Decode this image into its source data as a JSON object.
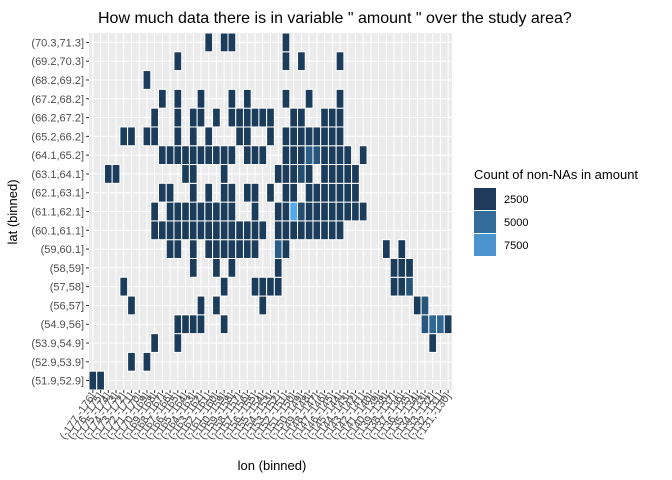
{
  "chart_data": {
    "type": "heatmap",
    "title": "How much data there is in variable \" amount  \" over the study area?",
    "xlabel": "lon (binned)",
    "ylabel": "lat (binned)",
    "x_categories": [
      "(-177,-176]",
      "(-176,-175]",
      "(-175,-174]",
      "(-174,-173]",
      "(-173,-172]",
      "(-172,-171]",
      "(-171,-170]",
      "(-170,-169]",
      "(-169,-168]",
      "(-168,-167]",
      "(-167,-166]",
      "(-166,-165]",
      "(-165,-164]",
      "(-164,-163]",
      "(-163,-162]",
      "(-162,-161]",
      "(-161,-160]",
      "(-160,-159]",
      "(-159,-158]",
      "(-158,-157]",
      "(-157,-156]",
      "(-156,-155]",
      "(-155,-154]",
      "(-154,-153]",
      "(-153,-152]",
      "(-152,-151]",
      "(-151,-150]",
      "(-150,-149]",
      "(-149,-148]",
      "(-148,-147]",
      "(-147,-146]",
      "(-146,-145]",
      "(-145,-144]",
      "(-144,-143]",
      "(-143,-142]",
      "(-142,-141]",
      "(-141,-140]",
      "(-140,-139]",
      "(-139,-138]",
      "(-138,-137]",
      "(-137,-136]",
      "(-136,-135]",
      "(-135,-134]",
      "(-134,-133]",
      "(-133,-132]",
      "(-132,-131]",
      "(-131,-130]"
    ],
    "y_categories": [
      "(51.9,52.9]",
      "(52.9,53.9]",
      "(53.9,54.9]",
      "(54.9,56]",
      "(56,57]",
      "(57,58]",
      "(58,59]",
      "(59,60.1]",
      "(60.1,61.1]",
      "(61.1,62.1]",
      "(62.1,63.1]",
      "(63.1,64.1]",
      "(64.1,65.2]",
      "(65.2,66.2]",
      "(66.2,67.2]",
      "(67.2,68.2]",
      "(68.2,69.2]",
      "(69.2,70.3]",
      "(70.3,71.3]"
    ],
    "cells": [
      [
        0,
        0,
        1000
      ],
      [
        1,
        0,
        1000
      ],
      [
        5,
        1,
        1000
      ],
      [
        7,
        1,
        1000
      ],
      [
        8,
        2,
        1000
      ],
      [
        11,
        2,
        1000
      ],
      [
        44,
        2,
        1000
      ],
      [
        11,
        3,
        1000
      ],
      [
        12,
        3,
        1000
      ],
      [
        13,
        3,
        1000
      ],
      [
        14,
        3,
        1000
      ],
      [
        17,
        3,
        1000
      ],
      [
        43,
        3,
        2500
      ],
      [
        44,
        3,
        3500
      ],
      [
        45,
        3,
        3500
      ],
      [
        46,
        3,
        1000
      ],
      [
        5,
        4,
        1000
      ],
      [
        14,
        4,
        1000
      ],
      [
        16,
        4,
        1000
      ],
      [
        22,
        4,
        1000
      ],
      [
        42,
        4,
        1000
      ],
      [
        43,
        4,
        2500
      ],
      [
        4,
        5,
        1000
      ],
      [
        17,
        5,
        1000
      ],
      [
        21,
        5,
        1000
      ],
      [
        22,
        5,
        1000
      ],
      [
        23,
        5,
        1000
      ],
      [
        24,
        5,
        1000
      ],
      [
        39,
        5,
        1000
      ],
      [
        40,
        5,
        1000
      ],
      [
        41,
        5,
        2500
      ],
      [
        13,
        6,
        1000
      ],
      [
        16,
        6,
        1000
      ],
      [
        18,
        6,
        1000
      ],
      [
        24,
        6,
        1000
      ],
      [
        39,
        6,
        1000
      ],
      [
        40,
        6,
        1000
      ],
      [
        41,
        6,
        1000
      ],
      [
        10,
        7,
        1000
      ],
      [
        11,
        7,
        1000
      ],
      [
        13,
        7,
        1000
      ],
      [
        15,
        7,
        1000
      ],
      [
        16,
        7,
        1000
      ],
      [
        17,
        7,
        1000
      ],
      [
        18,
        7,
        1000
      ],
      [
        19,
        7,
        1000
      ],
      [
        20,
        7,
        1000
      ],
      [
        21,
        7,
        1000
      ],
      [
        24,
        7,
        3000
      ],
      [
        25,
        7,
        1000
      ],
      [
        38,
        7,
        1000
      ],
      [
        40,
        7,
        1000
      ],
      [
        8,
        8,
        1000
      ],
      [
        9,
        8,
        1000
      ],
      [
        10,
        8,
        1000
      ],
      [
        11,
        8,
        1000
      ],
      [
        12,
        8,
        1000
      ],
      [
        13,
        8,
        1000
      ],
      [
        14,
        8,
        1000
      ],
      [
        15,
        8,
        1000
      ],
      [
        16,
        8,
        1000
      ],
      [
        17,
        8,
        1000
      ],
      [
        18,
        8,
        1000
      ],
      [
        19,
        8,
        1000
      ],
      [
        20,
        8,
        1000
      ],
      [
        21,
        8,
        1000
      ],
      [
        22,
        8,
        1000
      ],
      [
        24,
        8,
        1000
      ],
      [
        25,
        8,
        1000
      ],
      [
        26,
        8,
        1000
      ],
      [
        27,
        8,
        1000
      ],
      [
        28,
        8,
        1000
      ],
      [
        29,
        8,
        1000
      ],
      [
        30,
        8,
        1000
      ],
      [
        31,
        8,
        1000
      ],
      [
        32,
        8,
        1000
      ],
      [
        8,
        9,
        1000
      ],
      [
        10,
        9,
        1000
      ],
      [
        11,
        9,
        1000
      ],
      [
        12,
        9,
        1000
      ],
      [
        13,
        9,
        1000
      ],
      [
        14,
        9,
        1000
      ],
      [
        15,
        9,
        1000
      ],
      [
        16,
        9,
        1000
      ],
      [
        17,
        9,
        1000
      ],
      [
        18,
        9,
        1000
      ],
      [
        21,
        9,
        1000
      ],
      [
        24,
        9,
        1000
      ],
      [
        25,
        9,
        1000
      ],
      [
        26,
        9,
        7500
      ],
      [
        27,
        9,
        2000
      ],
      [
        28,
        9,
        1000
      ],
      [
        29,
        9,
        1000
      ],
      [
        30,
        9,
        1000
      ],
      [
        31,
        9,
        1000
      ],
      [
        32,
        9,
        1000
      ],
      [
        33,
        9,
        1000
      ],
      [
        34,
        9,
        1000
      ],
      [
        35,
        9,
        1000
      ],
      [
        9,
        10,
        1000
      ],
      [
        10,
        10,
        1000
      ],
      [
        13,
        10,
        1000
      ],
      [
        15,
        10,
        1000
      ],
      [
        17,
        10,
        1000
      ],
      [
        18,
        10,
        1000
      ],
      [
        20,
        10,
        1000
      ],
      [
        21,
        10,
        1000
      ],
      [
        23,
        10,
        1000
      ],
      [
        25,
        10,
        1000
      ],
      [
        26,
        10,
        1000
      ],
      [
        28,
        10,
        1000
      ],
      [
        29,
        10,
        1000
      ],
      [
        30,
        10,
        1000
      ],
      [
        31,
        10,
        1000
      ],
      [
        32,
        10,
        1000
      ],
      [
        33,
        10,
        1000
      ],
      [
        34,
        10,
        1000
      ],
      [
        2,
        11,
        1000
      ],
      [
        3,
        11,
        1000
      ],
      [
        12,
        11,
        1000
      ],
      [
        13,
        11,
        1000
      ],
      [
        17,
        11,
        1000
      ],
      [
        24,
        11,
        1000
      ],
      [
        25,
        11,
        1000
      ],
      [
        26,
        11,
        1000
      ],
      [
        27,
        11,
        2000
      ],
      [
        28,
        11,
        1000
      ],
      [
        30,
        11,
        1000
      ],
      [
        31,
        11,
        1000
      ],
      [
        32,
        11,
        1000
      ],
      [
        33,
        11,
        1000
      ],
      [
        34,
        11,
        1000
      ],
      [
        9,
        12,
        1000
      ],
      [
        10,
        12,
        1000
      ],
      [
        11,
        12,
        1000
      ],
      [
        12,
        12,
        1000
      ],
      [
        13,
        12,
        1000
      ],
      [
        14,
        12,
        1000
      ],
      [
        15,
        12,
        1000
      ],
      [
        16,
        12,
        1000
      ],
      [
        17,
        12,
        1000
      ],
      [
        18,
        12,
        1000
      ],
      [
        20,
        12,
        1000
      ],
      [
        21,
        12,
        1000
      ],
      [
        22,
        12,
        1000
      ],
      [
        25,
        12,
        1000
      ],
      [
        26,
        12,
        1000
      ],
      [
        27,
        12,
        1000
      ],
      [
        28,
        12,
        3000
      ],
      [
        29,
        12,
        2500
      ],
      [
        30,
        12,
        1000
      ],
      [
        31,
        12,
        1000
      ],
      [
        32,
        12,
        1000
      ],
      [
        33,
        12,
        1000
      ],
      [
        35,
        12,
        1000
      ],
      [
        4,
        13,
        1000
      ],
      [
        5,
        13,
        1000
      ],
      [
        7,
        13,
        1000
      ],
      [
        8,
        13,
        1000
      ],
      [
        11,
        13,
        1000
      ],
      [
        13,
        13,
        1000
      ],
      [
        15,
        13,
        1000
      ],
      [
        19,
        13,
        1000
      ],
      [
        20,
        13,
        1000
      ],
      [
        23,
        13,
        1000
      ],
      [
        25,
        13,
        1000
      ],
      [
        26,
        13,
        1000
      ],
      [
        27,
        13,
        1000
      ],
      [
        28,
        13,
        1000
      ],
      [
        29,
        13,
        1000
      ],
      [
        30,
        13,
        1000
      ],
      [
        31,
        13,
        1000
      ],
      [
        32,
        13,
        1000
      ],
      [
        8,
        14,
        1000
      ],
      [
        11,
        14,
        1000
      ],
      [
        13,
        14,
        1000
      ],
      [
        14,
        14,
        1000
      ],
      [
        16,
        14,
        1000
      ],
      [
        18,
        14,
        1000
      ],
      [
        19,
        14,
        1000
      ],
      [
        20,
        14,
        1000
      ],
      [
        21,
        14,
        1000
      ],
      [
        22,
        14,
        1000
      ],
      [
        23,
        14,
        1000
      ],
      [
        26,
        14,
        1000
      ],
      [
        27,
        14,
        1000
      ],
      [
        30,
        14,
        1000
      ],
      [
        31,
        14,
        1000
      ],
      [
        32,
        14,
        1000
      ],
      [
        9,
        15,
        1000
      ],
      [
        11,
        15,
        1000
      ],
      [
        14,
        15,
        1000
      ],
      [
        18,
        15,
        1000
      ],
      [
        20,
        15,
        1000
      ],
      [
        25,
        15,
        1000
      ],
      [
        28,
        15,
        1000
      ],
      [
        32,
        15,
        1000
      ],
      [
        7,
        16,
        1000
      ],
      [
        11,
        17,
        1000
      ],
      [
        25,
        17,
        1000
      ],
      [
        27,
        17,
        1000
      ],
      [
        32,
        17,
        1000
      ],
      [
        15,
        18,
        1000
      ],
      [
        17,
        18,
        1000
      ],
      [
        18,
        18,
        1000
      ],
      [
        25,
        18,
        1000
      ]
    ],
    "legend": {
      "title": "Count of non-NAs in amount",
      "entries": [
        {
          "label": "2500",
          "color": "#1f3a5a"
        },
        {
          "label": "5000",
          "color": "#336b99"
        },
        {
          "label": "7500",
          "color": "#4a93cf"
        }
      ],
      "placement": "right"
    },
    "color_scale": {
      "low": "#132b43",
      "high": "#56b1f7",
      "min": 0,
      "max": 8000
    },
    "grid": true,
    "panel_color": "#ebebeb"
  }
}
